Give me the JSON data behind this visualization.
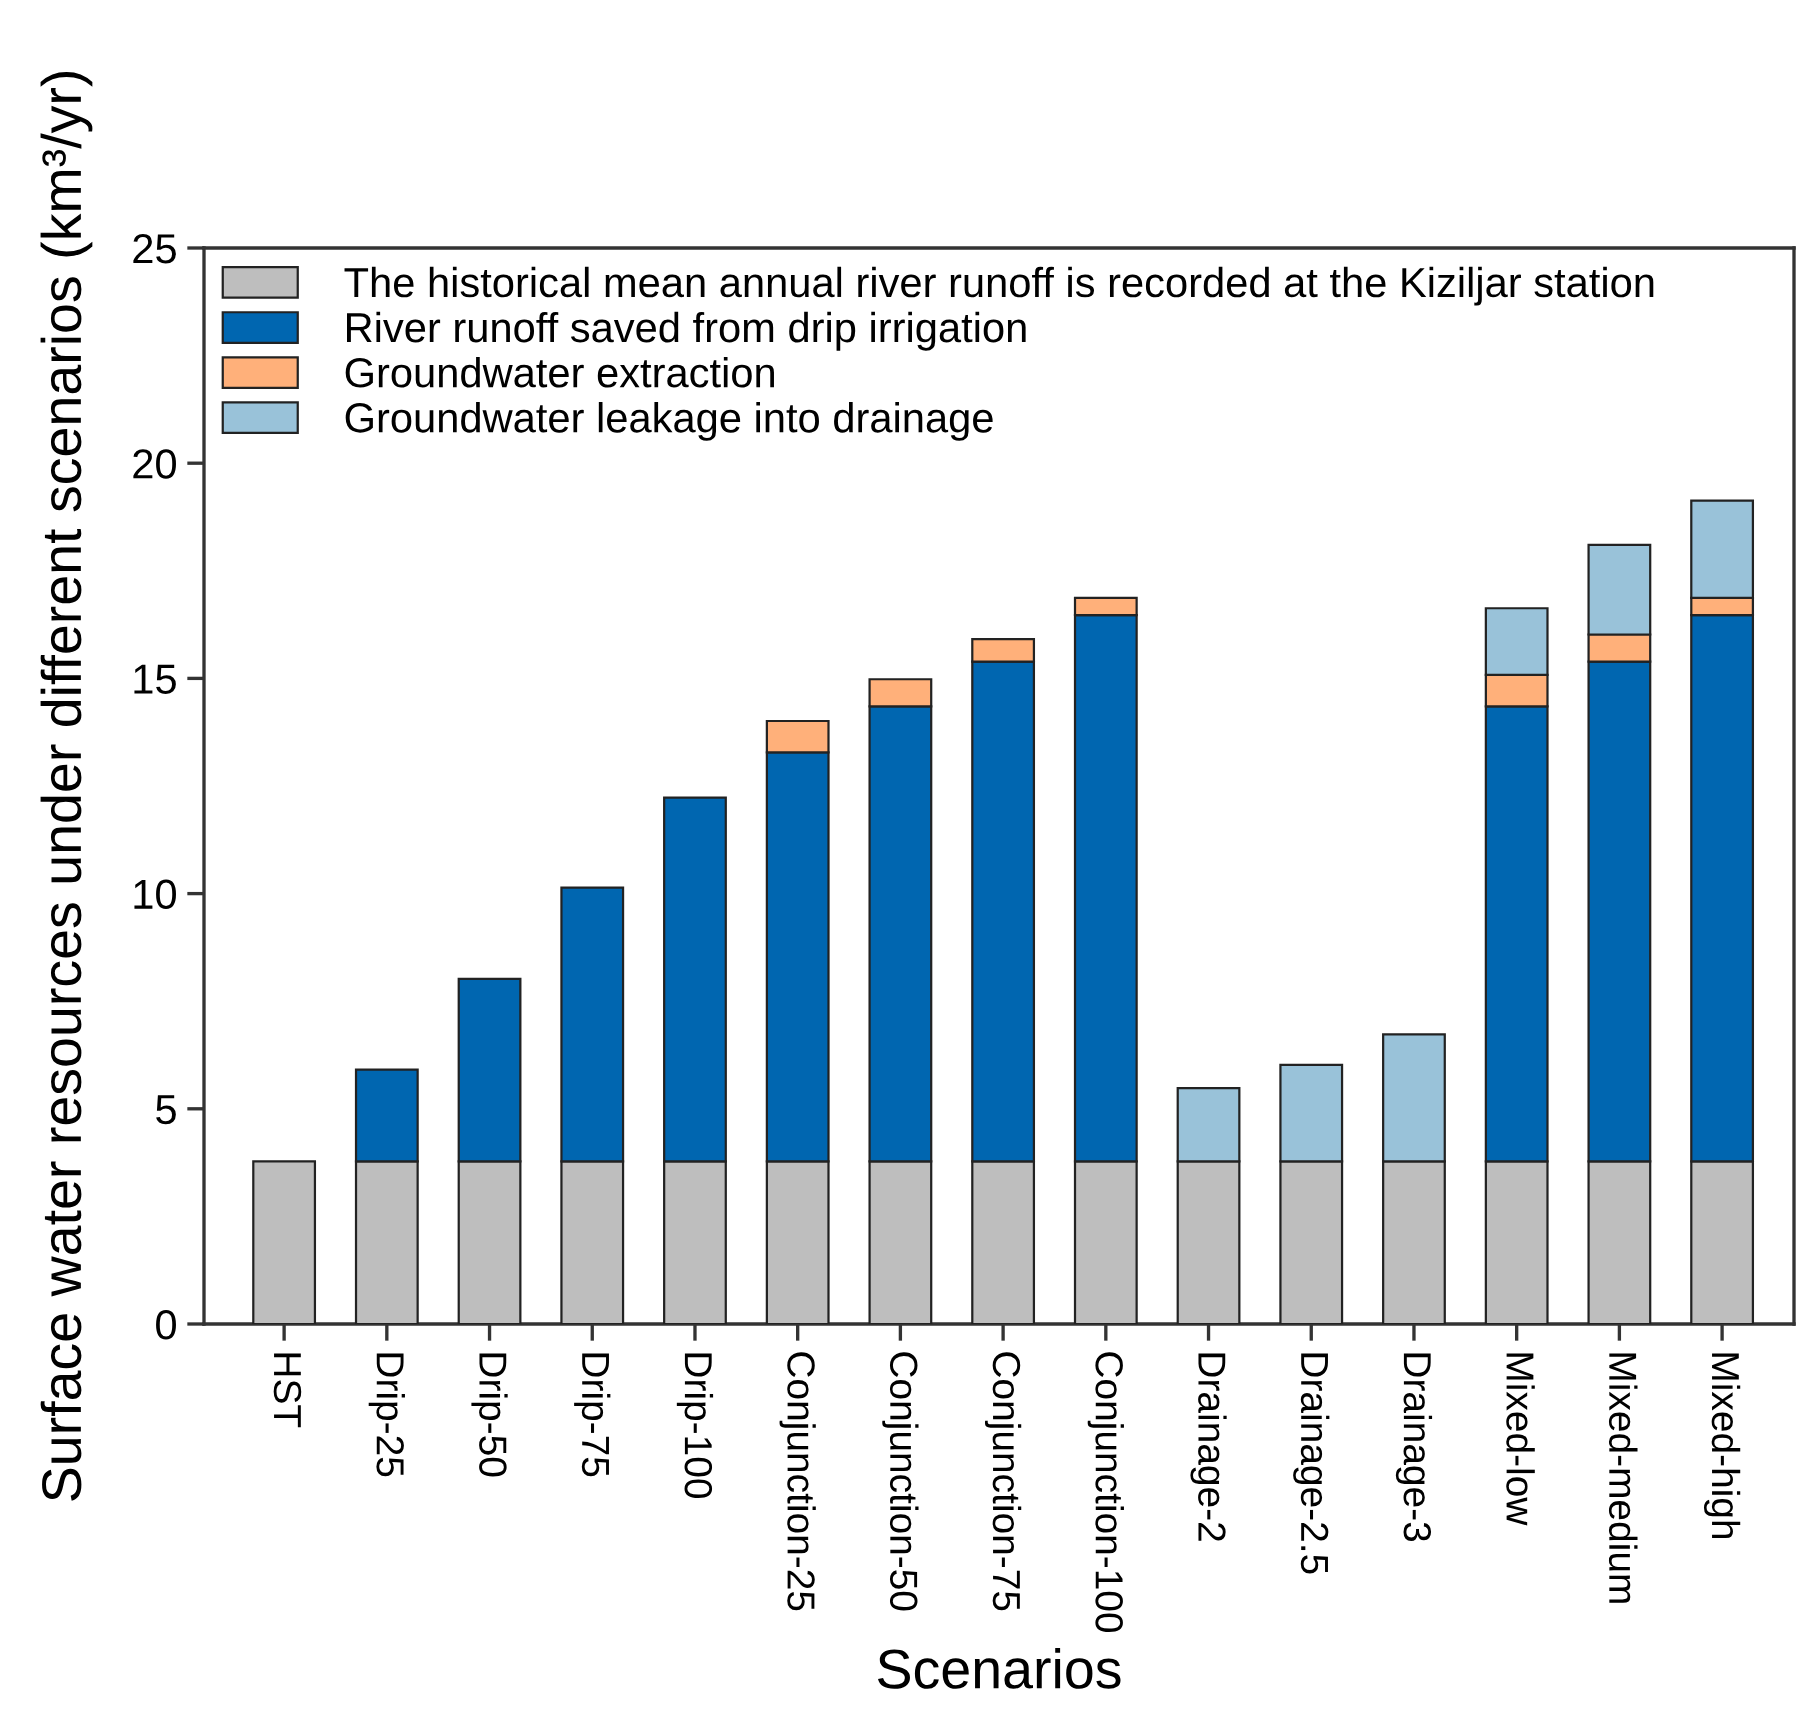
{
  "chart_data": {
    "type": "bar",
    "stacked": true,
    "xlabel": "Scenarios",
    "ylabel": "Surface water resources under different scenarios (km³/yr)",
    "categories": [
      "HST",
      "Drip-25",
      "Drip-50",
      "Drip-75",
      "Drip-100",
      "Conjunction-25",
      "Conjunction-50",
      "Conjunction-75",
      "Conjunction-100",
      "Drainage-2",
      "Drainage-2.5",
      "Drainage-3",
      "Mixed-low",
      "Mixed-medium",
      "Mixed-high"
    ],
    "series": [
      {
        "name": "The historical mean annual river runoff is recorded at the Kiziljar station",
        "color": "#bebebe",
        "values": [
          3.78,
          3.78,
          3.78,
          3.78,
          3.78,
          3.78,
          3.78,
          3.78,
          3.78,
          3.78,
          3.78,
          3.78,
          3.78,
          3.78,
          3.78
        ]
      },
      {
        "name": "River runoff saved from drip irrigation",
        "color": "#0066b0",
        "values": [
          null,
          2.13,
          4.24,
          6.36,
          8.45,
          9.5,
          10.57,
          11.61,
          12.69,
          null,
          null,
          null,
          10.57,
          11.61,
          12.69
        ]
      },
      {
        "name": "Groundwater extraction",
        "color": "#ffb07a",
        "values": [
          null,
          null,
          null,
          null,
          null,
          0.73,
          0.63,
          0.52,
          0.4,
          null,
          null,
          null,
          0.73,
          0.63,
          0.4
        ]
      },
      {
        "name": "Groundwater leakage into drainage",
        "color": "#99c2d9",
        "values": [
          null,
          null,
          null,
          null,
          null,
          null,
          null,
          null,
          null,
          1.7,
          2.24,
          2.95,
          1.55,
          2.08,
          2.26
        ]
      }
    ],
    "ylim": [
      0,
      25
    ],
    "yticks": [
      0,
      5,
      10,
      15,
      20,
      25
    ],
    "grid": false,
    "legend": "top left"
  }
}
